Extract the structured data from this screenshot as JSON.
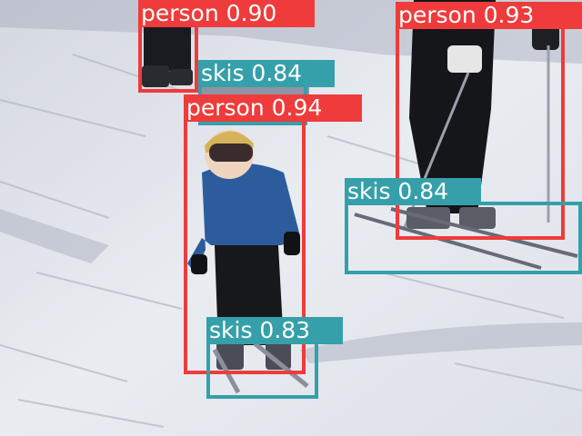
{
  "colors": {
    "person": "#ef3b3b",
    "skis": "#35a0aa"
  },
  "detections": [
    {
      "label": "person 0.90",
      "class": "person"
    },
    {
      "label": "person 0.93",
      "class": "person"
    },
    {
      "label": "skis 0.84",
      "class": "skis"
    },
    {
      "label": "person 0.94",
      "class": "person"
    },
    {
      "label": "skis 0.84",
      "class": "skis"
    },
    {
      "label": "skis 0.83",
      "class": "skis"
    }
  ]
}
